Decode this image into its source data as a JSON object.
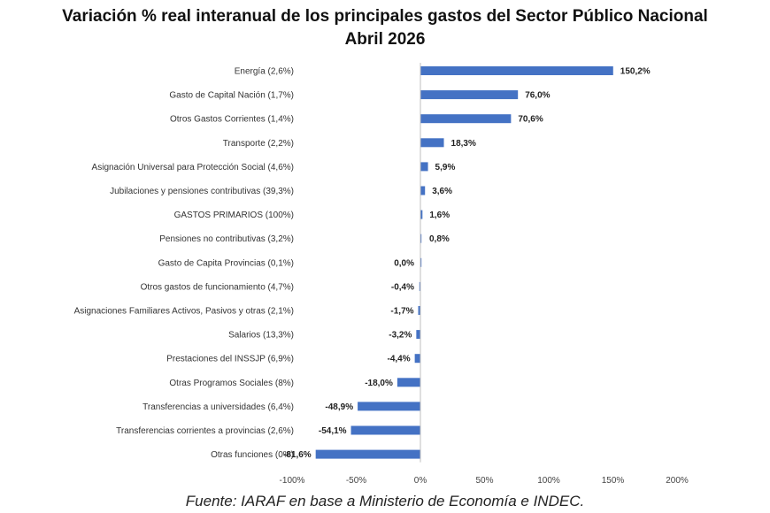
{
  "title": "Variación % real interanual de los principales gastos del Sector Público Nacional",
  "subtitle": "Abril 2026",
  "source": "Fuente: IARAF en base a Ministerio de Economía e INDEC.",
  "chart_data": {
    "type": "bar",
    "orientation": "horizontal",
    "categories": [
      "Energía (2,6%)",
      "Gasto de Capital Nación (1,7%)",
      "Otros Gastos Corrientes      (1,4%)",
      "Transporte (2,2%)",
      "Asignación Universal para Protección Social (4,6%)",
      "Jubilaciones y pensiones contributivas (39,3%)",
      "GASTOS PRIMARIOS (100%)",
      "Pensiones no contributivas (3,2%)",
      "Gasto de Capita Provincias (0,1%)",
      "Otros gastos de funcionamiento (4,7%)",
      "Asignaciones Familiares Activos, Pasivos y otras (2,1%)",
      "Salarios (13,3%)",
      "Prestaciones del INSSJP (6,9%)",
      "Otras Programos Sociales  (8%)",
      "Transferencias a universidades (6,4%)",
      "Transferencias corrientes a provincias (2,6%)",
      "Otras funciones   (0%)"
    ],
    "values": [
      150.2,
      76.0,
      70.6,
      18.3,
      5.9,
      3.6,
      1.6,
      0.8,
      0.0,
      -0.4,
      -1.7,
      -3.2,
      -4.4,
      -18.0,
      -48.9,
      -54.1,
      -81.6
    ],
    "value_labels": [
      "150,2%",
      "76,0%",
      "70,6%",
      "18,3%",
      "5,9%",
      "3,6%",
      "1,6%",
      "0,8%",
      "0,0%",
      "-0,4%",
      "-1,7%",
      "-3,2%",
      "-4,4%",
      "-18,0%",
      "-48,9%",
      "-54,1%",
      "-81,6%"
    ],
    "xlim": [
      -100,
      200
    ],
    "xticks": [
      -100,
      -50,
      0,
      50,
      100,
      150,
      200
    ],
    "xtick_labels": [
      "-100%",
      "-50%",
      "0%",
      "50%",
      "100%",
      "150%",
      "200%"
    ],
    "grid": false,
    "bar_color": "#4472c4"
  }
}
